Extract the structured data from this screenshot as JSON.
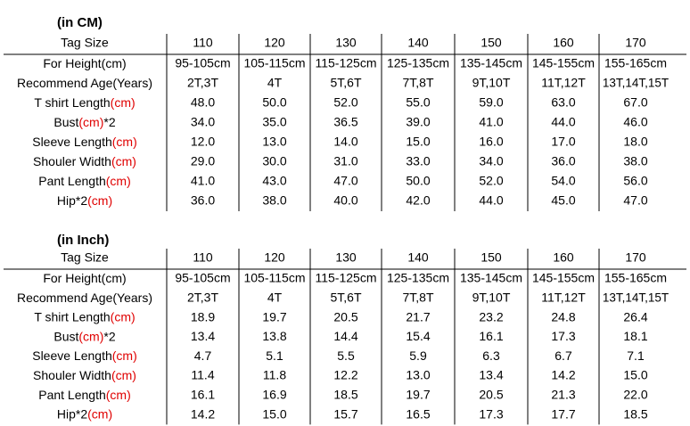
{
  "tables": [
    {
      "title": "(in CM)",
      "title_color": "#e00000",
      "header": {
        "label": "Tag Size",
        "cells": [
          "110",
          "120",
          "130",
          "140",
          "150",
          "160",
          "170"
        ]
      },
      "rows": [
        {
          "label": [
            {
              "text": "For Height(cm)",
              "color": "#000000"
            }
          ],
          "color": "#000000",
          "cells": [
            "95-105cm",
            "105-115cm",
            "115-125cm",
            "125-135cm",
            "135-145cm",
            "145-155cm",
            "155-165cm"
          ]
        },
        {
          "label": [
            {
              "text": "Recommend Age(Years)",
              "color": "#000000"
            }
          ],
          "color": "#e00000",
          "cells": [
            "2T,3T",
            "4T",
            "5T,6T",
            "7T,8T",
            "9T,10T",
            "11T,12T",
            "13T,14T,15T"
          ]
        },
        {
          "label": [
            {
              "text": "T shirt Length",
              "color": "#000000"
            },
            {
              "text": "(cm)",
              "color": "#e00000"
            }
          ],
          "color": "#000000",
          "cells": [
            "48.0",
            "50.0",
            "52.0",
            "55.0",
            "59.0",
            "63.0",
            "67.0"
          ]
        },
        {
          "label": [
            {
              "text": "Bust",
              "color": "#000000"
            },
            {
              "text": "(cm)",
              "color": "#e00000"
            },
            {
              "text": "*2",
              "color": "#000000"
            }
          ],
          "color": "#000000",
          "cells": [
            "34.0",
            "35.0",
            "36.5",
            "39.0",
            "41.0",
            "44.0",
            "46.0"
          ]
        },
        {
          "label": [
            {
              "text": "Sleeve Length",
              "color": "#000000"
            },
            {
              "text": "(cm)",
              "color": "#e00000"
            }
          ],
          "color": "#000000",
          "cells": [
            "12.0",
            "13.0",
            "14.0",
            "15.0",
            "16.0",
            "17.0",
            "18.0"
          ]
        },
        {
          "label": [
            {
              "text": "Shouler Width",
              "color": "#000000"
            },
            {
              "text": "(cm)",
              "color": "#e00000"
            }
          ],
          "color": "#000000",
          "cells": [
            "29.0",
            "30.0",
            "31.0",
            "33.0",
            "34.0",
            "36.0",
            "38.0"
          ]
        },
        {
          "label": [
            {
              "text": "Pant Length",
              "color": "#000000"
            },
            {
              "text": "(cm)",
              "color": "#e00000"
            }
          ],
          "color": "#000000",
          "cells": [
            "41.0",
            "43.0",
            "47.0",
            "50.0",
            "52.0",
            "54.0",
            "56.0"
          ]
        },
        {
          "label": [
            {
              "text": "Hip*2",
              "color": "#000000"
            },
            {
              "text": "(cm)",
              "color": "#e00000"
            }
          ],
          "color": "#000000",
          "cells": [
            "36.0",
            "38.0",
            "40.0",
            "42.0",
            "44.0",
            "45.0",
            "47.0"
          ]
        }
      ]
    },
    {
      "title": "(in Inch)",
      "title_color": "#e00000",
      "header": {
        "label": "Tag Size",
        "cells": [
          "110",
          "120",
          "130",
          "140",
          "150",
          "160",
          "170"
        ]
      },
      "rows": [
        {
          "label": [
            {
              "text": "For Height(cm)",
              "color": "#000000"
            }
          ],
          "color": "#000000",
          "cells": [
            "95-105cm",
            "105-115cm",
            "115-125cm",
            "125-135cm",
            "135-145cm",
            "145-155cm",
            "155-165cm"
          ]
        },
        {
          "label": [
            {
              "text": "Recommend Age(Years)",
              "color": "#000000"
            }
          ],
          "color": "#e00000",
          "cells": [
            "2T,3T",
            "4T",
            "5T,6T",
            "7T,8T",
            "9T,10T",
            "11T,12T",
            "13T,14T,15T"
          ]
        },
        {
          "label": [
            {
              "text": "T shirt Length",
              "color": "#000000"
            },
            {
              "text": "(cm)",
              "color": "#e00000"
            }
          ],
          "color": "#000000",
          "cells": [
            "18.9",
            "19.7",
            "20.5",
            "21.7",
            "23.2",
            "24.8",
            "26.4"
          ]
        },
        {
          "label": [
            {
              "text": "Bust",
              "color": "#000000"
            },
            {
              "text": "(cm)",
              "color": "#e00000"
            },
            {
              "text": "*2",
              "color": "#000000"
            }
          ],
          "color": "#000000",
          "cells": [
            "13.4",
            "13.8",
            "14.4",
            "15.4",
            "16.1",
            "17.3",
            "18.1"
          ]
        },
        {
          "label": [
            {
              "text": "Sleeve Length",
              "color": "#000000"
            },
            {
              "text": "(cm)",
              "color": "#e00000"
            }
          ],
          "color": "#000000",
          "cells": [
            "4.7",
            "5.1",
            "5.5",
            "5.9",
            "6.3",
            "6.7",
            "7.1"
          ]
        },
        {
          "label": [
            {
              "text": "Shouler Width",
              "color": "#000000"
            },
            {
              "text": "(cm)",
              "color": "#e00000"
            }
          ],
          "color": "#000000",
          "cells": [
            "11.4",
            "11.8",
            "12.2",
            "13.0",
            "13.4",
            "14.2",
            "15.0"
          ]
        },
        {
          "label": [
            {
              "text": "Pant Length",
              "color": "#000000"
            },
            {
              "text": "(cm)",
              "color": "#e00000"
            }
          ],
          "color": "#000000",
          "cells": [
            "16.1",
            "16.9",
            "18.5",
            "19.7",
            "20.5",
            "21.3",
            "22.0"
          ]
        },
        {
          "label": [
            {
              "text": "Hip*2",
              "color": "#000000"
            },
            {
              "text": "(cm)",
              "color": "#e00000"
            }
          ],
          "color": "#000000",
          "cells": [
            "14.2",
            "15.0",
            "15.7",
            "16.5",
            "17.3",
            "17.7",
            "18.5"
          ]
        }
      ]
    }
  ]
}
